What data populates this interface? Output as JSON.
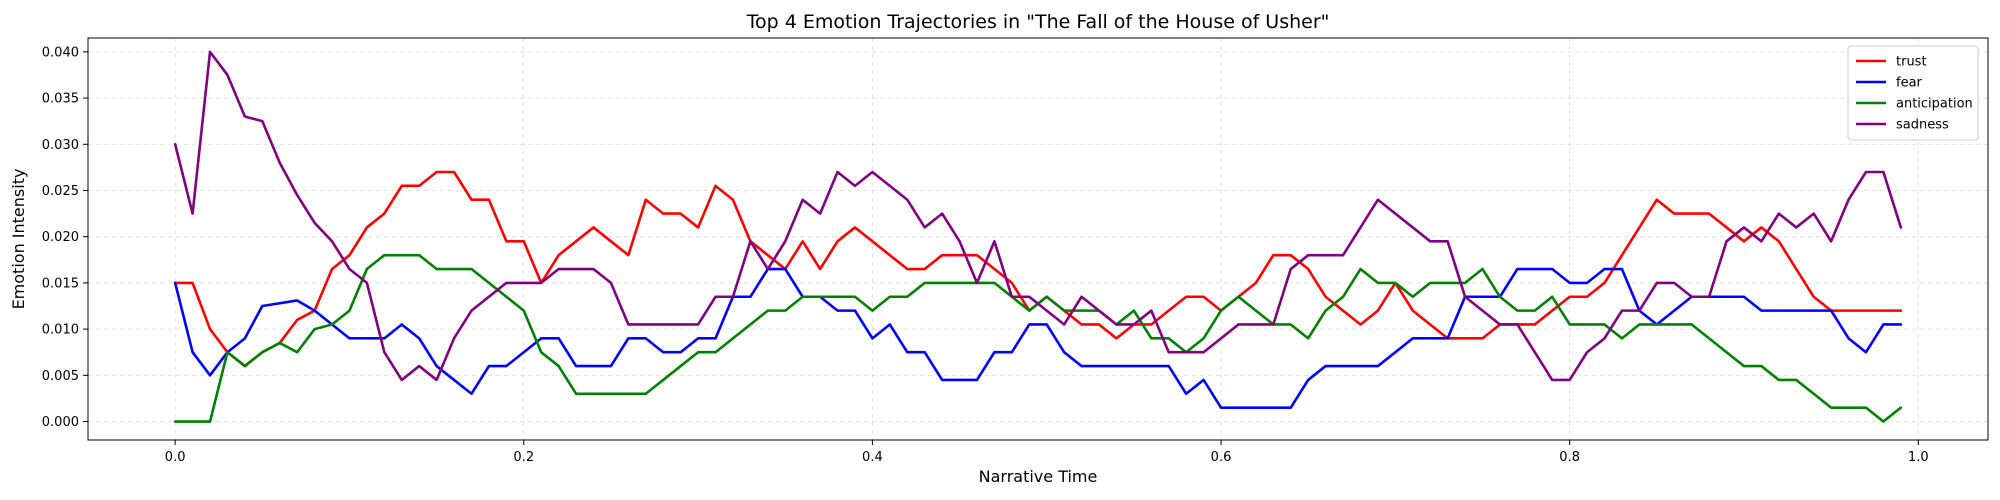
{
  "chart_data": {
    "type": "line",
    "title": "Top 4 Emotion Trajectories in \"The Fall of the House of Usher\"",
    "xlabel": "Narrative Time",
    "ylabel": "Emotion Intensity",
    "xlim": [
      -0.05,
      1.04
    ],
    "ylim": [
      -0.002,
      0.0415
    ],
    "xticks": [
      "0.0",
      "0.2",
      "0.4",
      "0.6",
      "0.8",
      "1.0"
    ],
    "yticks": [
      "0.000",
      "0.005",
      "0.010",
      "0.015",
      "0.020",
      "0.025",
      "0.030",
      "0.035",
      "0.040"
    ],
    "grid": true,
    "legend_position": "top-right",
    "x": [
      0.0,
      0.01,
      0.02,
      0.03,
      0.04,
      0.05,
      0.06,
      0.07,
      0.08,
      0.09,
      0.1,
      0.11,
      0.12,
      0.13,
      0.14,
      0.15,
      0.16,
      0.17,
      0.18,
      0.19,
      0.2,
      0.21,
      0.22,
      0.23,
      0.24,
      0.25,
      0.26,
      0.27,
      0.28,
      0.29,
      0.3,
      0.31,
      0.32,
      0.33,
      0.34,
      0.35,
      0.36,
      0.37,
      0.38,
      0.39,
      0.4,
      0.41,
      0.42,
      0.43,
      0.44,
      0.45,
      0.46,
      0.47,
      0.48,
      0.49,
      0.5,
      0.51,
      0.52,
      0.53,
      0.54,
      0.55,
      0.56,
      0.57,
      0.58,
      0.59,
      0.6,
      0.61,
      0.62,
      0.63,
      0.64,
      0.65,
      0.66,
      0.67,
      0.68,
      0.69,
      0.7,
      0.71,
      0.72,
      0.73,
      0.74,
      0.75,
      0.76,
      0.77,
      0.78,
      0.79,
      0.8,
      0.81,
      0.82,
      0.83,
      0.84,
      0.85,
      0.86,
      0.87,
      0.88,
      0.89,
      0.9,
      0.91,
      0.92,
      0.93,
      0.94,
      0.95,
      0.96,
      0.97,
      0.98,
      0.99
    ],
    "series": [
      {
        "name": "trust",
        "color": "#ff0000",
        "values": [
          0.015,
          0.015,
          0.01,
          0.0075,
          0.006,
          0.0075,
          0.0085,
          0.011,
          0.012,
          0.0165,
          0.018,
          0.021,
          0.0225,
          0.0255,
          0.0255,
          0.027,
          0.027,
          0.024,
          0.024,
          0.0195,
          0.0195,
          0.015,
          0.018,
          0.0195,
          0.021,
          0.0195,
          0.018,
          0.024,
          0.0225,
          0.0225,
          0.021,
          0.0255,
          0.024,
          0.0195,
          0.018,
          0.0165,
          0.0195,
          0.0165,
          0.0195,
          0.021,
          0.0195,
          0.018,
          0.0165,
          0.0165,
          0.018,
          0.018,
          0.018,
          0.0165,
          0.015,
          0.012,
          0.0135,
          0.012,
          0.0105,
          0.0105,
          0.009,
          0.0105,
          0.0105,
          0.012,
          0.0135,
          0.0135,
          0.012,
          0.0135,
          0.015,
          0.018,
          0.018,
          0.0165,
          0.0135,
          0.012,
          0.0105,
          0.012,
          0.015,
          0.012,
          0.0105,
          0.009,
          0.009,
          0.009,
          0.0105,
          0.0105,
          0.0105,
          0.012,
          0.0135,
          0.0135,
          0.015,
          0.018,
          0.021,
          0.024,
          0.0225,
          0.0225,
          0.0225,
          0.021,
          0.0195,
          0.021,
          0.0195,
          0.0165,
          0.0135,
          0.012,
          0.012,
          0.012,
          0.012,
          0.012
        ]
      },
      {
        "name": "fear",
        "color": "#0000ff",
        "values": [
          0.015,
          0.0075,
          0.005,
          0.0075,
          0.009,
          0.0125,
          0.0128,
          0.0131,
          0.012,
          0.0105,
          0.009,
          0.009,
          0.009,
          0.0105,
          0.009,
          0.006,
          0.0045,
          0.003,
          0.006,
          0.006,
          0.0075,
          0.009,
          0.009,
          0.006,
          0.006,
          0.006,
          0.009,
          0.009,
          0.0075,
          0.0075,
          0.009,
          0.009,
          0.0135,
          0.0135,
          0.0165,
          0.0165,
          0.0135,
          0.0135,
          0.012,
          0.012,
          0.009,
          0.0105,
          0.0075,
          0.0075,
          0.0045,
          0.0045,
          0.0045,
          0.0075,
          0.0075,
          0.0105,
          0.0105,
          0.0075,
          0.006,
          0.006,
          0.006,
          0.006,
          0.006,
          0.006,
          0.003,
          0.0045,
          0.0015,
          0.0015,
          0.0015,
          0.0015,
          0.0015,
          0.0045,
          0.006,
          0.006,
          0.006,
          0.006,
          0.0075,
          0.009,
          0.009,
          0.009,
          0.0135,
          0.0135,
          0.0135,
          0.0165,
          0.0165,
          0.0165,
          0.015,
          0.015,
          0.0165,
          0.0165,
          0.012,
          0.0105,
          0.012,
          0.0135,
          0.0135,
          0.0135,
          0.0135,
          0.012,
          0.012,
          0.012,
          0.012,
          0.012,
          0.009,
          0.0075,
          0.0105,
          0.0105
        ]
      },
      {
        "name": "anticipation",
        "color": "#008000",
        "values": [
          0.0,
          0.0,
          0.0,
          0.0075,
          0.006,
          0.0075,
          0.0085,
          0.0075,
          0.01,
          0.0105,
          0.012,
          0.0165,
          0.018,
          0.018,
          0.018,
          0.0165,
          0.0165,
          0.0165,
          0.015,
          0.0135,
          0.012,
          0.0075,
          0.006,
          0.003,
          0.003,
          0.003,
          0.003,
          0.003,
          0.0045,
          0.006,
          0.0075,
          0.0075,
          0.009,
          0.0105,
          0.012,
          0.012,
          0.0135,
          0.0135,
          0.0135,
          0.0135,
          0.012,
          0.0135,
          0.0135,
          0.015,
          0.015,
          0.015,
          0.015,
          0.015,
          0.0135,
          0.012,
          0.0135,
          0.012,
          0.012,
          0.012,
          0.0105,
          0.012,
          0.009,
          0.009,
          0.0075,
          0.009,
          0.012,
          0.0135,
          0.012,
          0.0105,
          0.0105,
          0.009,
          0.012,
          0.0135,
          0.0165,
          0.015,
          0.015,
          0.0135,
          0.015,
          0.015,
          0.015,
          0.0165,
          0.0135,
          0.012,
          0.012,
          0.0135,
          0.0105,
          0.0105,
          0.0105,
          0.009,
          0.0105,
          0.0105,
          0.0105,
          0.0105,
          0.009,
          0.0075,
          0.006,
          0.006,
          0.0045,
          0.0045,
          0.003,
          0.0015,
          0.0015,
          0.0015,
          0.0,
          0.0015
        ]
      },
      {
        "name": "sadness",
        "color": "#800080",
        "values": [
          0.03,
          0.0225,
          0.04,
          0.0375,
          0.033,
          0.0325,
          0.028,
          0.0245,
          0.0215,
          0.0195,
          0.0165,
          0.015,
          0.0075,
          0.0045,
          0.006,
          0.0045,
          0.009,
          0.012,
          0.0135,
          0.015,
          0.015,
          0.015,
          0.0165,
          0.0165,
          0.0165,
          0.015,
          0.0105,
          0.0105,
          0.0105,
          0.0105,
          0.0105,
          0.0135,
          0.0135,
          0.0195,
          0.0165,
          0.0195,
          0.024,
          0.0225,
          0.027,
          0.0255,
          0.027,
          0.0255,
          0.024,
          0.021,
          0.0225,
          0.0195,
          0.015,
          0.0195,
          0.0135,
          0.0135,
          0.012,
          0.0105,
          0.0135,
          0.012,
          0.0105,
          0.0105,
          0.012,
          0.0075,
          0.0075,
          0.0075,
          0.009,
          0.0105,
          0.0105,
          0.0105,
          0.0165,
          0.018,
          0.018,
          0.018,
          0.021,
          0.024,
          0.0225,
          0.021,
          0.0195,
          0.0195,
          0.0135,
          0.012,
          0.0105,
          0.0105,
          0.0075,
          0.0045,
          0.0045,
          0.0075,
          0.009,
          0.012,
          0.012,
          0.015,
          0.015,
          0.0135,
          0.0135,
          0.0195,
          0.021,
          0.0195,
          0.0225,
          0.021,
          0.0225,
          0.0195,
          0.024,
          0.027,
          0.027,
          0.021
        ]
      }
    ]
  }
}
